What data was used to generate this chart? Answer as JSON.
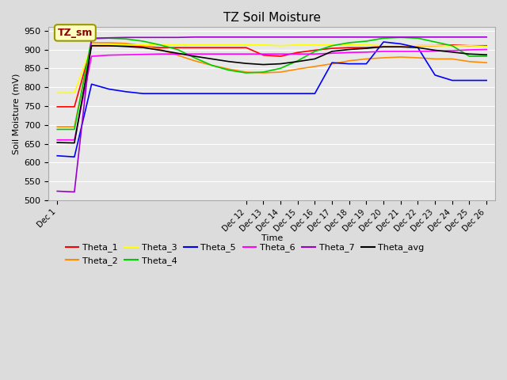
{
  "title": "TZ Soil Moisture",
  "xlabel": "Time",
  "ylabel": "Soil Moisture (mV)",
  "ylim": [
    500,
    960
  ],
  "yticks": [
    500,
    550,
    600,
    650,
    700,
    750,
    800,
    850,
    900,
    950
  ],
  "bg_color": "#DCDCDC",
  "plot_bg": "#E8E8E8",
  "annotation_text": "TZ_sm",
  "annotation_color": "#8B0000",
  "annotation_bg": "#FFFFC0",
  "annotation_border": "#999900",
  "colors": {
    "Theta_1": "#FF0000",
    "Theta_2": "#FF8C00",
    "Theta_3": "#FFFF00",
    "Theta_4": "#00CC00",
    "Theta_5": "#0000FF",
    "Theta_6": "#FF00FF",
    "Theta_7": "#9900CC",
    "Theta_avg": "#000000"
  },
  "series": {
    "Theta_1": {
      "x": [
        0,
        1,
        2,
        3,
        4,
        5,
        6,
        7,
        8,
        9,
        10,
        11,
        12,
        13,
        14,
        15,
        16,
        17,
        18,
        19,
        20,
        21,
        22,
        23,
        24,
        25
      ],
      "y": [
        748,
        748,
        910,
        910,
        910,
        908,
        905,
        905,
        905,
        905,
        905,
        905,
        885,
        882,
        892,
        898,
        903,
        905,
        905,
        908,
        908,
        910,
        910,
        912,
        910,
        910
      ]
    },
    "Theta_2": {
      "x": [
        0,
        1,
        2,
        3,
        4,
        5,
        6,
        7,
        8,
        9,
        10,
        11,
        12,
        13,
        14,
        15,
        16,
        17,
        18,
        19,
        20,
        21,
        22,
        23,
        24,
        25
      ],
      "y": [
        695,
        695,
        918,
        918,
        916,
        910,
        900,
        885,
        870,
        858,
        848,
        840,
        838,
        840,
        848,
        855,
        862,
        870,
        875,
        878,
        880,
        878,
        875,
        875,
        868,
        865
      ]
    },
    "Theta_3": {
      "x": [
        0,
        1,
        2,
        3,
        4,
        5,
        6,
        7,
        8,
        9,
        10,
        11,
        12,
        13,
        14,
        15,
        16,
        17,
        18,
        19,
        20,
        21,
        22,
        23,
        24,
        25
      ],
      "y": [
        785,
        785,
        910,
        912,
        912,
        912,
        912,
        912,
        912,
        912,
        912,
        912,
        912,
        910,
        912,
        912,
        912,
        912,
        912,
        910,
        910,
        910,
        910,
        910,
        910,
        908
      ]
    },
    "Theta_4": {
      "x": [
        0,
        1,
        2,
        3,
        4,
        5,
        6,
        7,
        8,
        9,
        10,
        11,
        12,
        13,
        14,
        15,
        16,
        17,
        18,
        19,
        20,
        21,
        22,
        23,
        24,
        25
      ],
      "y": [
        688,
        688,
        928,
        930,
        928,
        922,
        912,
        900,
        878,
        858,
        845,
        838,
        840,
        850,
        870,
        895,
        910,
        918,
        922,
        930,
        932,
        930,
        920,
        910,
        882,
        882
      ]
    },
    "Theta_5": {
      "x": [
        0,
        1,
        2,
        3,
        4,
        5,
        6,
        7,
        8,
        9,
        10,
        11,
        12,
        13,
        14,
        15,
        16,
        17,
        18,
        19,
        20,
        21,
        22,
        23,
        24,
        25
      ],
      "y": [
        618,
        615,
        808,
        795,
        788,
        783,
        783,
        783,
        783,
        783,
        783,
        783,
        783,
        783,
        783,
        783,
        865,
        862,
        862,
        920,
        915,
        905,
        832,
        818,
        818,
        818
      ]
    },
    "Theta_6": {
      "x": [
        0,
        1,
        2,
        3,
        4,
        5,
        6,
        7,
        8,
        9,
        10,
        11,
        12,
        13,
        14,
        15,
        16,
        17,
        18,
        19,
        20,
        21,
        22,
        23,
        24,
        25
      ],
      "y": [
        660,
        660,
        882,
        885,
        886,
        887,
        888,
        888,
        888,
        888,
        888,
        888,
        888,
        888,
        888,
        888,
        890,
        892,
        893,
        895,
        895,
        895,
        896,
        897,
        899,
        900
      ]
    },
    "Theta_7": {
      "x": [
        0,
        1,
        2,
        3,
        4,
        5,
        6,
        7,
        8,
        9,
        10,
        11,
        12,
        13,
        14,
        15,
        16,
        17,
        18,
        19,
        20,
        21,
        22,
        23,
        24,
        25
      ],
      "y": [
        524,
        522,
        930,
        931,
        932,
        932,
        932,
        932,
        933,
        933,
        933,
        933,
        933,
        933,
        933,
        933,
        933,
        933,
        933,
        933,
        933,
        933,
        933,
        933,
        933,
        933
      ]
    },
    "Theta_avg": {
      "x": [
        0,
        1,
        2,
        3,
        4,
        5,
        6,
        7,
        8,
        9,
        10,
        11,
        12,
        13,
        14,
        15,
        16,
        17,
        18,
        19,
        20,
        21,
        22,
        23,
        24,
        25
      ],
      "y": [
        653,
        652,
        910,
        910,
        908,
        905,
        898,
        890,
        882,
        875,
        868,
        863,
        860,
        862,
        868,
        875,
        895,
        900,
        903,
        907,
        907,
        905,
        898,
        893,
        888,
        886
      ]
    }
  },
  "xtick_pos": [
    0,
    11,
    12,
    13,
    14,
    15,
    16,
    17,
    18,
    19,
    20,
    21,
    22,
    23,
    24,
    25
  ],
  "xtick_labels": [
    "Dec 1",
    "Dec 12",
    "Dec 13",
    "Dec 14",
    "Dec 15",
    "Dec 16",
    "Dec 17",
    "Dec 18",
    "Dec 19",
    "Dec 20",
    "Dec 21",
    "Dec 22",
    "Dec 23",
    "Dec 24",
    "Dec 25",
    "Dec 26"
  ]
}
